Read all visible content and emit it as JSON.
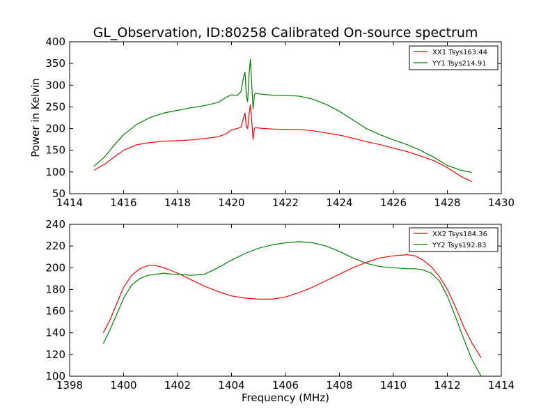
{
  "figure": {
    "title": "GL_Observation, ID:80258 Calibrated On-source spectrum"
  },
  "chart_data": [
    {
      "type": "line",
      "title": "GL_Observation, ID:80258 Calibrated On-source spectrum",
      "xlabel": "",
      "ylabel": "Power in Kelvin",
      "xlim": [
        1414,
        1430
      ],
      "ylim": [
        50,
        400
      ],
      "xticks": [
        1414,
        1416,
        1418,
        1420,
        1422,
        1424,
        1426,
        1428,
        1430
      ],
      "yticks": [
        50,
        100,
        150,
        200,
        250,
        300,
        350,
        400
      ],
      "grid": false,
      "legend": "top-right",
      "series": [
        {
          "name": "XX1 Tsys163.44",
          "color": "#ff0000",
          "x": [
            1414.9,
            1415.3,
            1415.6,
            1416.0,
            1416.5,
            1417.0,
            1417.5,
            1418.0,
            1418.5,
            1419.0,
            1419.5,
            1419.8,
            1420.0,
            1420.2,
            1420.35,
            1420.45,
            1420.5,
            1420.55,
            1420.6,
            1420.65,
            1420.7,
            1420.75,
            1420.8,
            1420.85,
            1420.9,
            1421.0,
            1421.5,
            1422.0,
            1422.5,
            1423.0,
            1423.5,
            1424.0,
            1424.5,
            1425.0,
            1425.5,
            1426.0,
            1426.5,
            1427.0,
            1427.5,
            1428.0,
            1428.5,
            1428.9
          ],
          "y": [
            104,
            118,
            132,
            150,
            163,
            168,
            171,
            172,
            174,
            177,
            181,
            188,
            197,
            200,
            203,
            226,
            236,
            204,
            200,
            232,
            255,
            215,
            175,
            200,
            203,
            201,
            199,
            198,
            198,
            195,
            190,
            185,
            178,
            170,
            163,
            155,
            147,
            137,
            126,
            110,
            90,
            78
          ]
        },
        {
          "name": "YY1 Tsys214.91",
          "color": "#008000",
          "x": [
            1414.9,
            1415.3,
            1415.6,
            1416.0,
            1416.5,
            1417.0,
            1417.5,
            1418.0,
            1418.5,
            1419.0,
            1419.5,
            1419.8,
            1420.0,
            1420.2,
            1420.35,
            1420.45,
            1420.5,
            1420.55,
            1420.6,
            1420.65,
            1420.7,
            1420.75,
            1420.8,
            1420.85,
            1420.9,
            1421.0,
            1421.5,
            1422.0,
            1422.5,
            1423.0,
            1423.5,
            1424.0,
            1424.5,
            1425.0,
            1425.5,
            1426.0,
            1426.5,
            1427.0,
            1427.5,
            1428.0,
            1428.5,
            1428.9
          ],
          "y": [
            113,
            135,
            158,
            186,
            210,
            226,
            236,
            242,
            248,
            253,
            260,
            272,
            278,
            276,
            285,
            320,
            330,
            275,
            262,
            325,
            360,
            300,
            245,
            278,
            282,
            280,
            277,
            276,
            275,
            268,
            256,
            240,
            220,
            200,
            186,
            174,
            163,
            150,
            134,
            115,
            104,
            99
          ]
        }
      ]
    },
    {
      "type": "line",
      "title": "",
      "xlabel": "Frequency (MHz)",
      "ylabel": "",
      "xlim": [
        1398,
        1414
      ],
      "ylim": [
        100,
        240
      ],
      "xticks": [
        1398,
        1400,
        1402,
        1404,
        1406,
        1408,
        1410,
        1412,
        1414
      ],
      "yticks": [
        100,
        120,
        140,
        160,
        180,
        200,
        220,
        240
      ],
      "grid": false,
      "legend": "top-right",
      "series": [
        {
          "name": "XX2 Tsys184.36",
          "color": "#ff0000",
          "x": [
            1399.25,
            1399.5,
            1399.8,
            1400.0,
            1400.3,
            1400.6,
            1400.9,
            1401.2,
            1401.5,
            1401.8,
            1402.0,
            1402.5,
            1403.0,
            1403.5,
            1404.0,
            1404.5,
            1405.0,
            1405.5,
            1406.0,
            1406.5,
            1407.0,
            1407.5,
            1408.0,
            1408.5,
            1409.0,
            1409.5,
            1410.0,
            1410.5,
            1410.8,
            1411.1,
            1411.4,
            1411.7,
            1412.0,
            1412.3,
            1412.6,
            1412.9,
            1413.25
          ],
          "y": [
            140,
            152,
            170,
            182,
            193,
            199,
            202,
            202,
            200,
            197,
            195,
            189,
            183,
            178,
            174,
            172,
            171,
            171,
            173,
            177,
            182,
            188,
            194,
            200,
            205,
            209,
            211,
            212,
            211,
            207,
            201,
            192,
            180,
            164,
            146,
            131,
            117
          ]
        },
        {
          "name": "YY2 Tsys192.83",
          "color": "#008000",
          "x": [
            1399.25,
            1399.5,
            1399.8,
            1400.0,
            1400.3,
            1400.6,
            1400.9,
            1401.2,
            1401.5,
            1401.8,
            1402.0,
            1402.5,
            1403.0,
            1403.5,
            1404.0,
            1404.5,
            1405.0,
            1405.5,
            1406.0,
            1406.5,
            1407.0,
            1407.5,
            1408.0,
            1408.5,
            1409.0,
            1409.5,
            1410.0,
            1410.5,
            1410.8,
            1411.1,
            1411.4,
            1411.7,
            1412.0,
            1412.3,
            1412.6,
            1412.9,
            1413.25
          ],
          "y": [
            130,
            143,
            160,
            172,
            184,
            190,
            193,
            194,
            195,
            194,
            194,
            193,
            194,
            200,
            207,
            213,
            218,
            221,
            223,
            224,
            223,
            220,
            215,
            209,
            204,
            201,
            200,
            199,
            199,
            198,
            195,
            188,
            174,
            155,
            135,
            116,
            100
          ]
        }
      ]
    }
  ]
}
